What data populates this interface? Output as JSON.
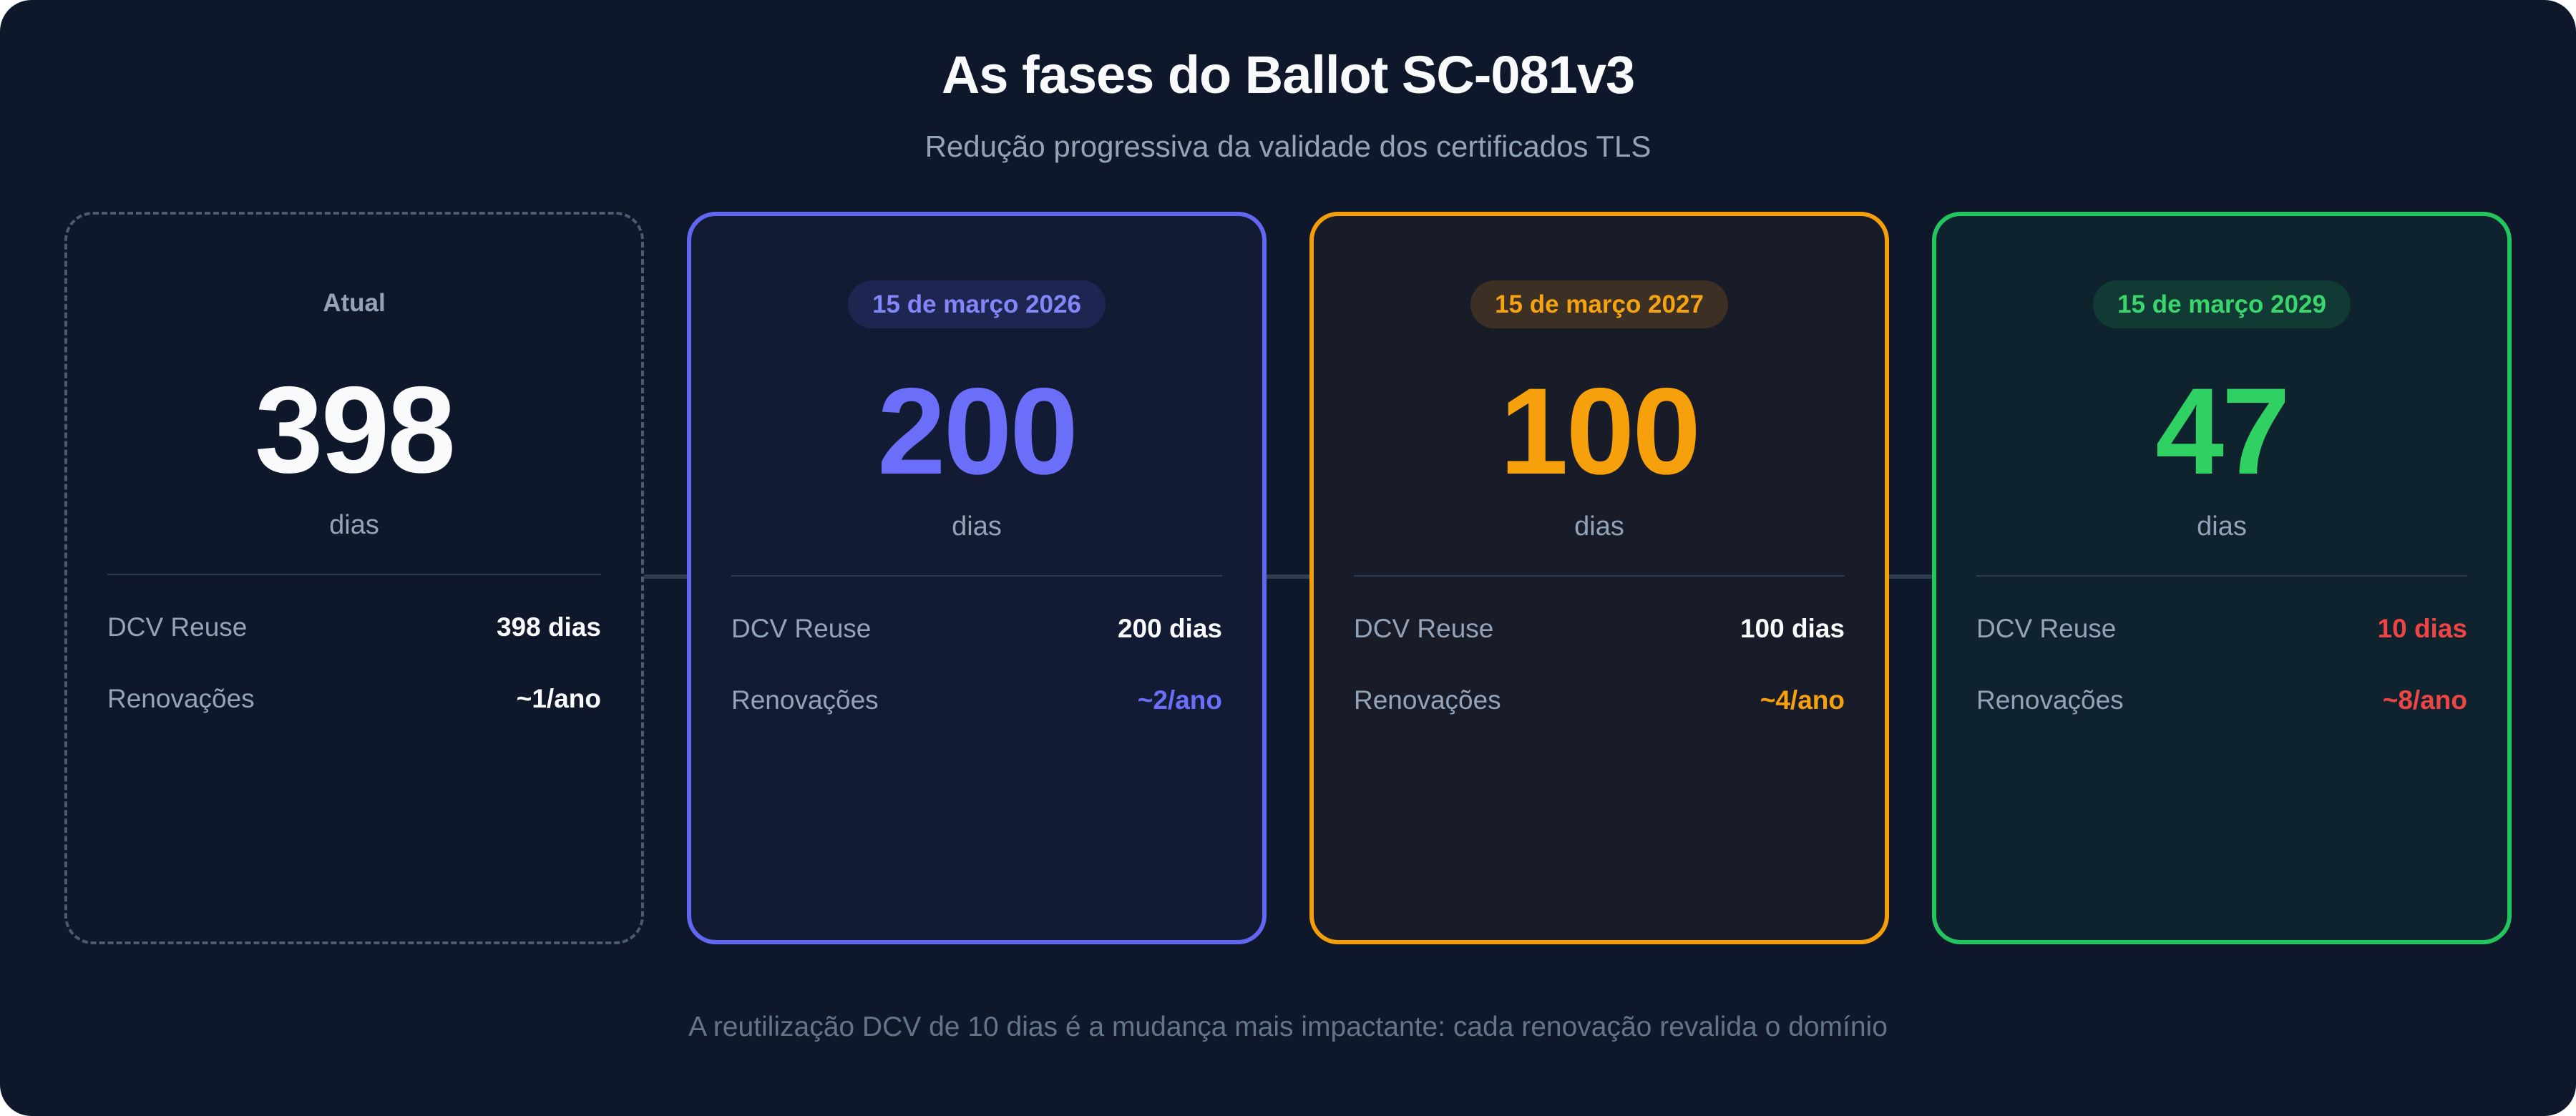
{
  "header": {
    "title": "As fases do Ballot SC-081v3",
    "subtitle": "Redução progressiva da validade dos certificados TLS"
  },
  "labels": {
    "dcv_reuse": "DCV Reuse",
    "renewals": "Renovações"
  },
  "cards": [
    {
      "badge": "Atual",
      "value": "398",
      "unit": "dias",
      "dcv_reuse": "398 dias",
      "renewals": "~1/ano",
      "accent": "#94a3b8"
    },
    {
      "badge": "15 de março 2026",
      "value": "200",
      "unit": "dias",
      "dcv_reuse": "200 dias",
      "renewals": "~2/ano",
      "accent": "#6366f1"
    },
    {
      "badge": "15 de março 2027",
      "value": "100",
      "unit": "dias",
      "dcv_reuse": "100 dias",
      "renewals": "~4/ano",
      "accent": "#f59e0b"
    },
    {
      "badge": "15 de março 2029",
      "value": "47",
      "unit": "dias",
      "dcv_reuse": "10 dias",
      "renewals": "~8/ano",
      "accent": "#22c55e",
      "alert_color": "#ef4444"
    }
  ],
  "footer": {
    "note": "A reutilização DCV de 10 dias é a mudança mais impactante: cada renovação revalida o domínio"
  },
  "colors": {
    "background": "#0f172a",
    "title": "#f8fafc",
    "muted_text": "#94a3b8",
    "footer_text": "#64748b",
    "dashed_border": "#4b5a70",
    "connector": "#2e3b51",
    "indigo": "#6366f1",
    "orange": "#f59e0b",
    "green": "#22c55e",
    "red": "#ef4444"
  }
}
